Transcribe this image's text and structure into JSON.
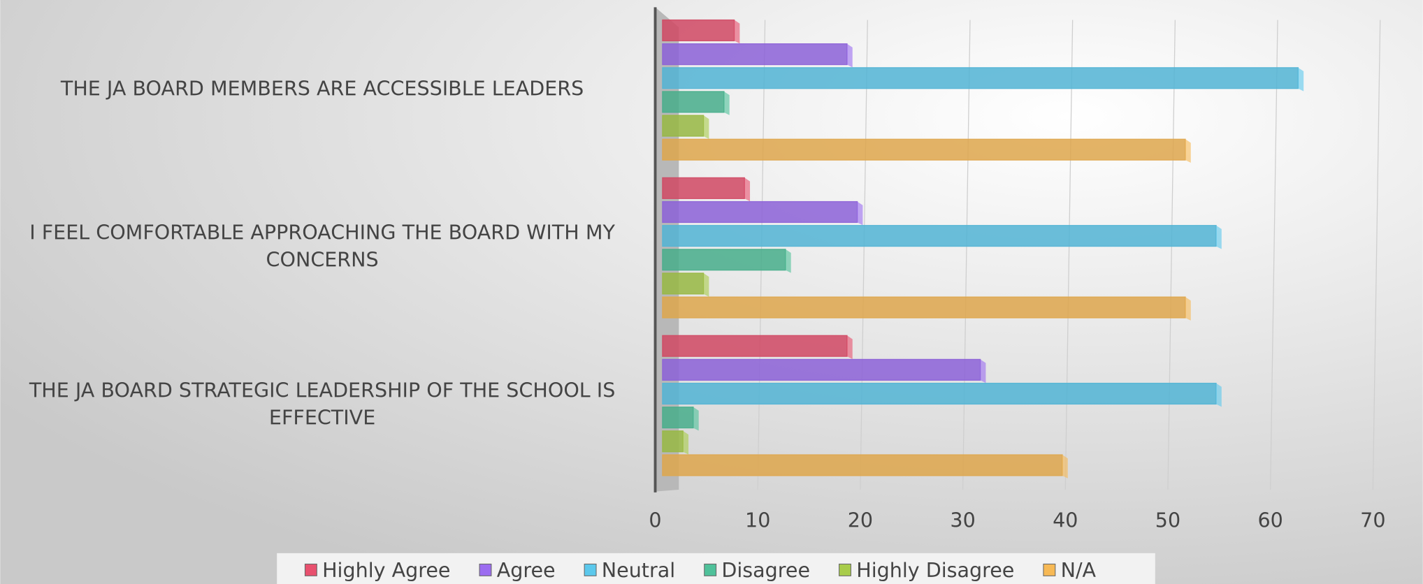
{
  "chart_data": {
    "type": "bar",
    "orientation": "horizontal",
    "categories": [
      "THE JA BOARD MEMBERS ARE ACCESSIBLE LEADERS",
      "I FEEL COMFORTABLE APPROACHING THE BOARD WITH MY CONCERNS",
      "THE JA BOARD STRATEGIC LEADERSHIP OF THE SCHOOL IS EFFECTIVE"
    ],
    "series": [
      {
        "name": "Highly Agree",
        "color": "#e8506e",
        "values": [
          7,
          8,
          18
        ]
      },
      {
        "name": "Agree",
        "color": "#9b6cf0",
        "values": [
          18,
          19,
          31
        ]
      },
      {
        "name": "Neutral",
        "color": "#5bc8ec",
        "values": [
          62,
          54,
          54
        ]
      },
      {
        "name": "Disagree",
        "color": "#4fc19a",
        "values": [
          6,
          12,
          3
        ]
      },
      {
        "name": "Highly Disagree",
        "color": "#a8cc4a",
        "values": [
          4,
          4,
          2
        ]
      },
      {
        "name": "N/A",
        "color": "#f7b955",
        "values": [
          51,
          51,
          39
        ]
      }
    ],
    "xlim": [
      0,
      70
    ],
    "xticks": [
      0,
      10,
      20,
      30,
      40,
      50,
      60,
      70
    ],
    "grid": true,
    "legend": "bottom"
  }
}
